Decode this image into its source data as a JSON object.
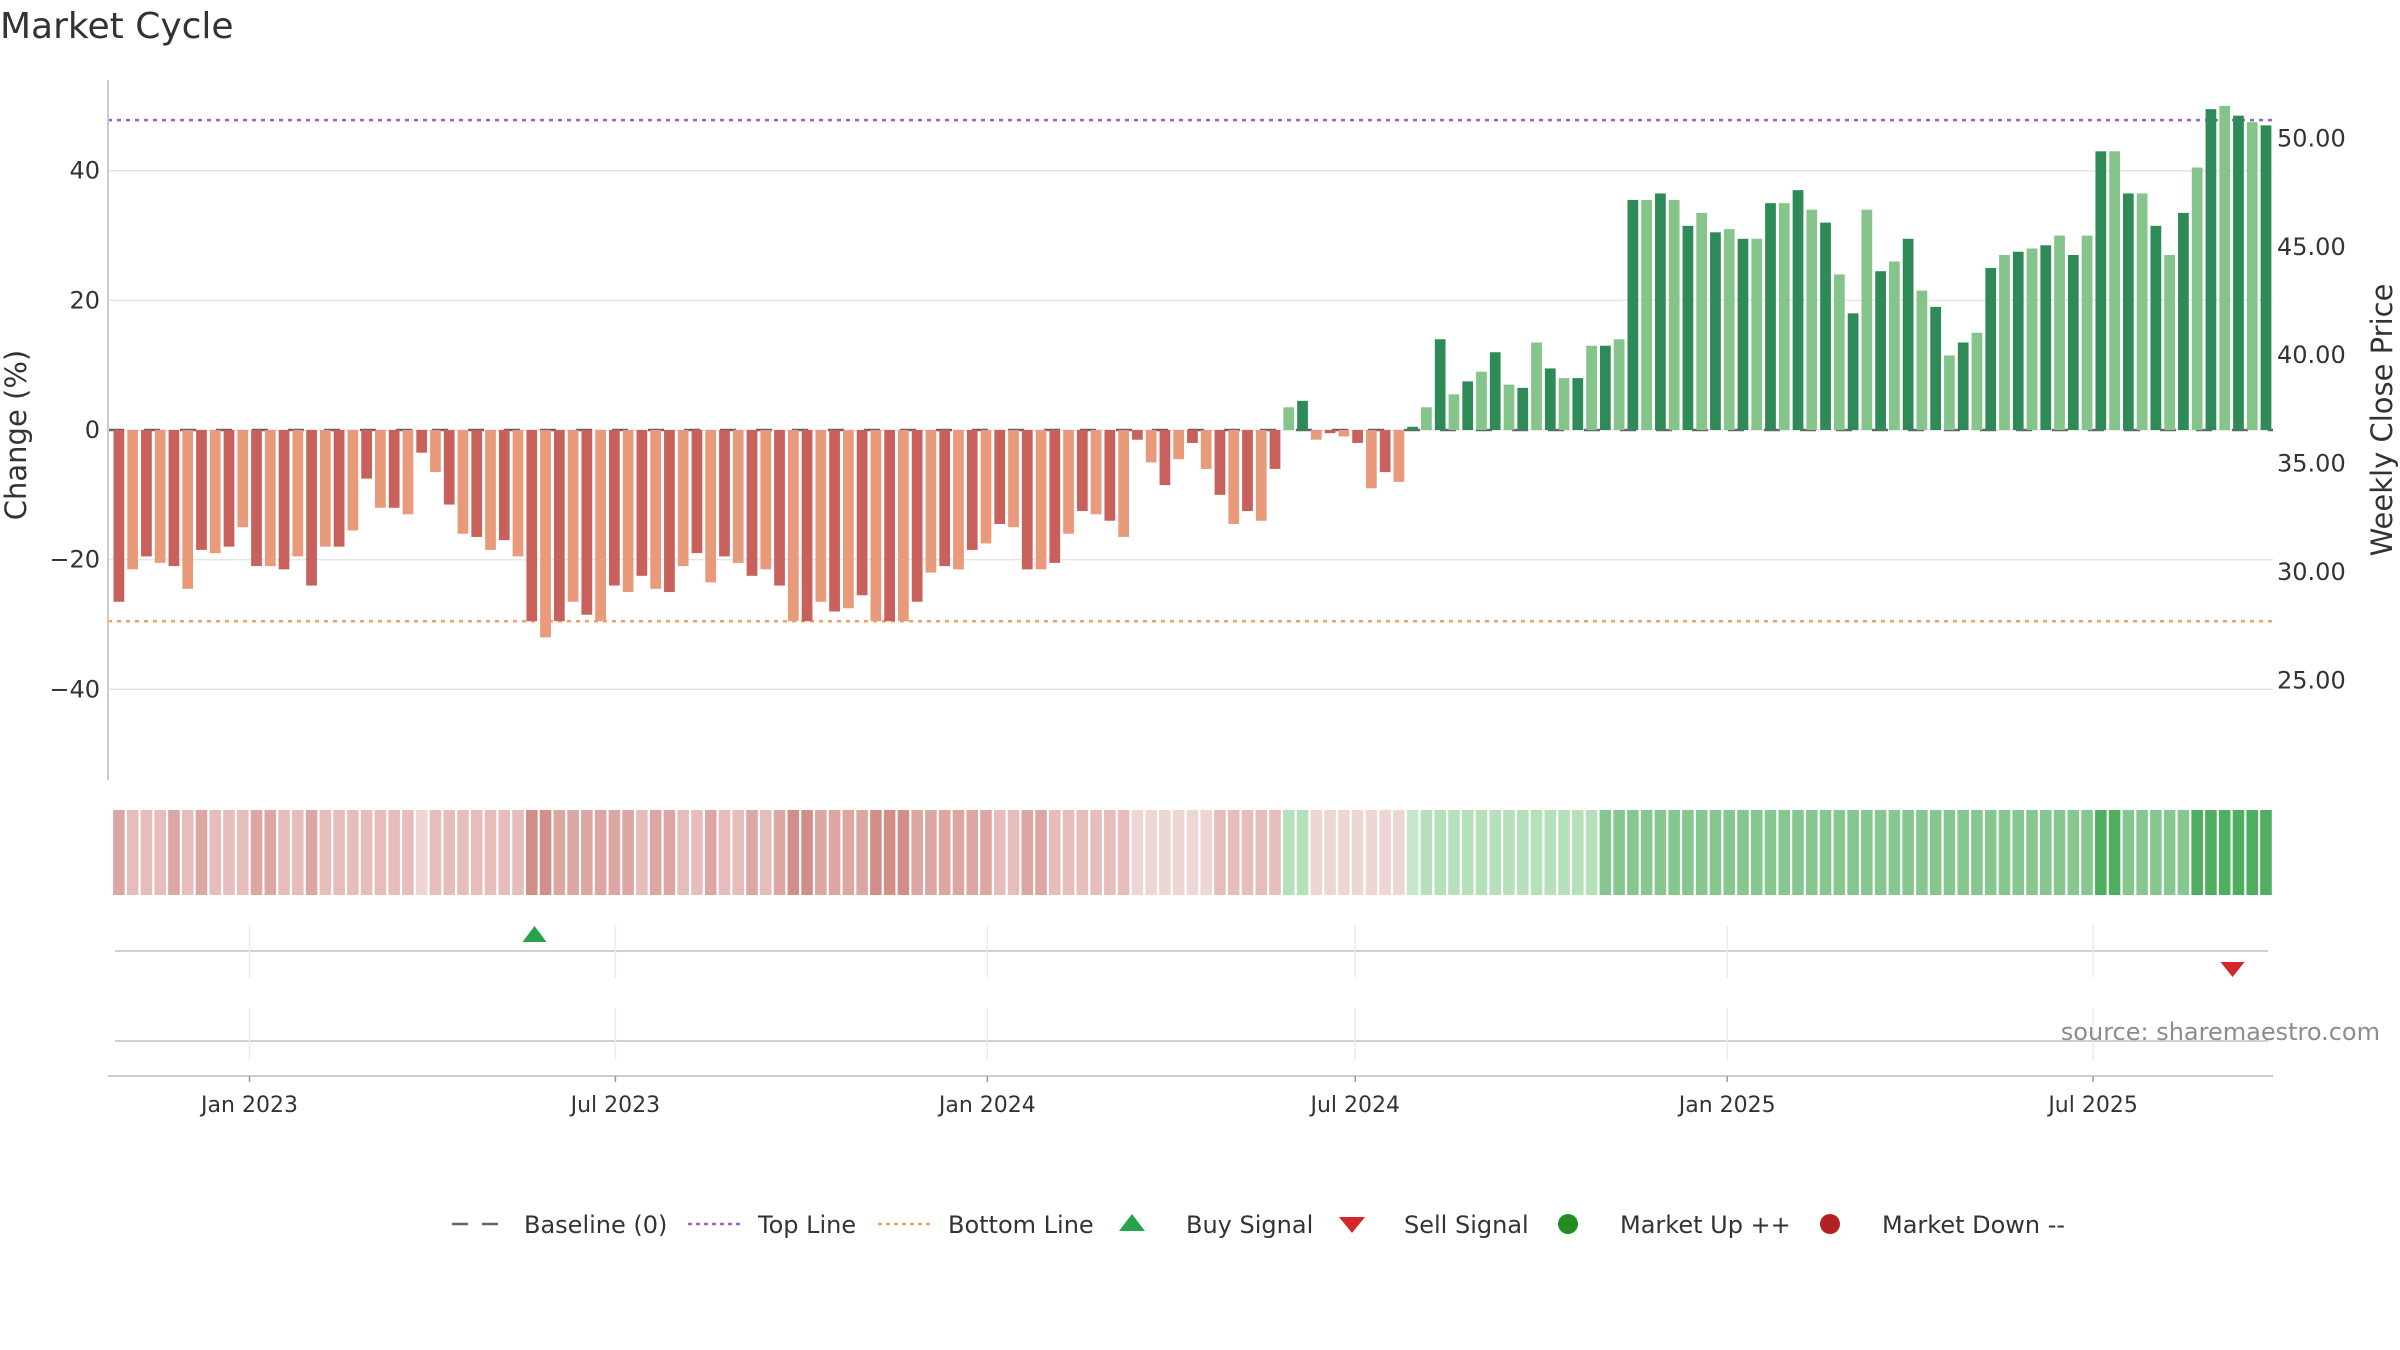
{
  "chart_data": {
    "type": "bar",
    "title": "Market Cycle",
    "ylabel": "Change (%)",
    "y2label": "Weekly Close Price",
    "ylim": [
      -54,
      54
    ],
    "y2lim": [
      20.4,
      52.7
    ],
    "yticks": [
      -40,
      -20,
      0,
      20,
      40
    ],
    "y2ticks": [
      "25.00",
      "30.00",
      "35.00",
      "40.00",
      "45.00",
      "50.00"
    ],
    "x_range": [
      "2022-10-23",
      "2025-09-28"
    ],
    "xticks": [
      {
        "date": "2023-01-01",
        "label": "Jan 2023"
      },
      {
        "date": "2023-07-01",
        "label": "Jul 2023"
      },
      {
        "date": "2024-01-01",
        "label": "Jan 2024"
      },
      {
        "date": "2024-07-01",
        "label": "Jul 2024"
      },
      {
        "date": "2025-01-01",
        "label": "Jan 2025"
      },
      {
        "date": "2025-07-01",
        "label": "Jul 2025"
      }
    ],
    "start_week": "2022-10-24",
    "change_pct": [
      -26.5,
      -21.5,
      -19.5,
      -20.5,
      -21,
      -24.5,
      -18.5,
      -19,
      -18,
      -15,
      -21,
      -21,
      -21.5,
      -19.5,
      -24,
      -18,
      -18,
      -15.5,
      -7.5,
      -12,
      -12,
      -13,
      -3.5,
      -6.5,
      -11.5,
      -16,
      -16.5,
      -18.5,
      -17,
      -19.5,
      -29.5,
      -32,
      -29.5,
      -26.5,
      -28.5,
      -29.5,
      -24,
      -25,
      -22.5,
      -24.5,
      -25,
      -21,
      -19,
      -23.5,
      -19.5,
      -20.5,
      -22.5,
      -21.5,
      -24,
      -29.5,
      -29.5,
      -26.5,
      -28,
      -27.5,
      -25.5,
      -29.5,
      -29.5,
      -29.5,
      -26.5,
      -22,
      -21,
      -21.5,
      -18.5,
      -17.5,
      -14.5,
      -15,
      -21.5,
      -21.5,
      -20.5,
      -16,
      -12.5,
      -13,
      -14,
      -16.5,
      -1.5,
      -5,
      -8.5,
      -4.5,
      -2,
      -6,
      -10,
      -14.5,
      -12.5,
      -14,
      -6,
      3.5,
      4.5,
      -1.5,
      -0.5,
      -1,
      -2,
      -9,
      -6.5,
      -8,
      0.5,
      3.5,
      14,
      5.5,
      7.5,
      9,
      12,
      7,
      6.5,
      13.5,
      9.5,
      8,
      8,
      13,
      13,
      14,
      35.5,
      35.5,
      36.5,
      35.5,
      31.5,
      33.5,
      30.5,
      31,
      29.5,
      29.5,
      35,
      35,
      37,
      34,
      32,
      24,
      18,
      34,
      24.5,
      26,
      29.5,
      21.5,
      19,
      11.5,
      13.5,
      15,
      25,
      27,
      27.5,
      28,
      28.5,
      30,
      27,
      30,
      43,
      43,
      36.5,
      36.5,
      31.5,
      27,
      33.5,
      40.5,
      49.5,
      50,
      48.5,
      47.5,
      47
    ],
    "regime_levels": [
      -2,
      -1,
      -1,
      -1,
      -2,
      -1,
      -2,
      -1,
      -1,
      -1,
      -2,
      -2,
      -1,
      -1,
      -2,
      -1,
      -1,
      -1,
      -1,
      -1,
      -1,
      -1,
      0,
      -1,
      -1,
      -1,
      -1,
      -1,
      -1,
      -1,
      -3,
      -3,
      -2,
      -2,
      -2,
      -2,
      -2,
      -2,
      -1,
      -2,
      -2,
      -1,
      -1,
      -2,
      -1,
      -1,
      -2,
      -1,
      -2,
      -3,
      -3,
      -2,
      -2,
      -2,
      -2,
      -3,
      -3,
      -3,
      -2,
      -2,
      -2,
      -2,
      -2,
      -2,
      -1,
      -1,
      -2,
      -2,
      -1,
      -1,
      -1,
      -1,
      -1,
      -1,
      0,
      0,
      0,
      0,
      0,
      0,
      -1,
      -1,
      -1,
      -1,
      -1,
      1,
      1,
      0,
      0,
      0,
      0,
      0,
      0,
      0,
      0,
      1,
      1,
      1,
      1,
      1,
      1,
      1,
      1,
      1,
      1,
      1,
      1,
      1,
      2,
      2,
      2,
      2,
      2,
      2,
      2,
      2,
      2,
      2,
      2,
      2,
      2,
      2,
      2,
      2,
      2,
      2,
      2,
      2,
      2,
      2,
      2,
      2,
      2,
      2,
      2,
      2,
      2,
      2,
      2,
      2,
      2,
      2,
      2,
      2,
      3,
      3,
      2,
      2,
      2,
      2,
      2,
      3,
      3,
      3,
      3,
      3,
      3
    ],
    "top_line": 47.8,
    "bottom_line": -29.5,
    "buy_signals": [
      "2023-05-22"
    ],
    "sell_signals": [
      "2025-09-08"
    ],
    "legend_position": "bottom",
    "colors": {
      "neg_dark": "#c8605c",
      "neg_light": "#e89a7a",
      "pos_dark": "#2e8b57",
      "pos_light": "#85c48a",
      "top_line": "#a05fc8",
      "bottom_line": "#f0a060",
      "baseline": "#666666",
      "buy": "#27a34a",
      "sell": "#d62728",
      "market_up": "#228b22",
      "market_down": "#b22222"
    },
    "legend": [
      {
        "label": "Baseline (0)",
        "icon": "dash-line"
      },
      {
        "label": "Top Line",
        "icon": "dotted-line-purple"
      },
      {
        "label": "Bottom Line",
        "icon": "dotted-line-orange"
      },
      {
        "label": "Buy Signal",
        "icon": "triangle-up-green"
      },
      {
        "label": "Sell Signal",
        "icon": "triangle-down-red"
      },
      {
        "label": "Market Up ++",
        "icon": "circle-green"
      },
      {
        "label": "Market Down --",
        "icon": "circle-red"
      }
    ],
    "source": "source: sharemaestro.com"
  }
}
